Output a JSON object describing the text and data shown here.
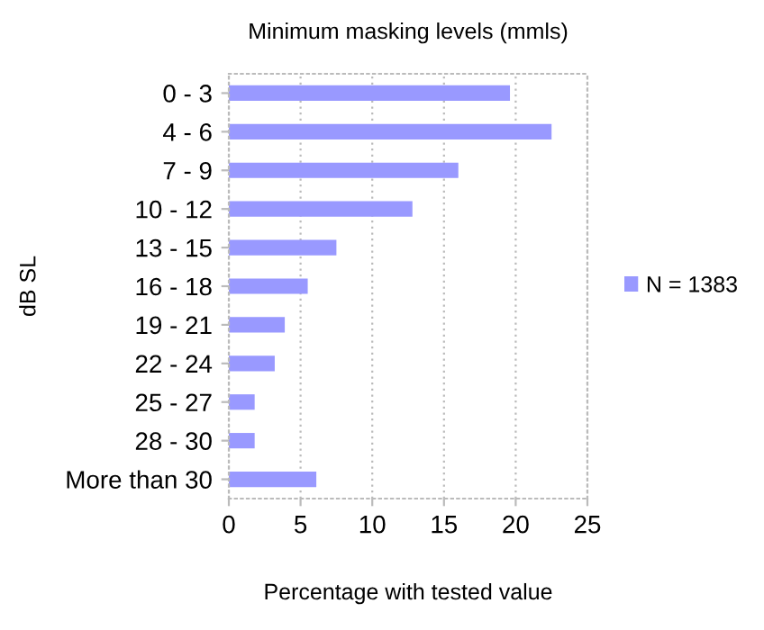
{
  "chart_data": {
    "type": "bar",
    "orientation": "horizontal",
    "title": "Minimum masking levels (mmls)",
    "xlabel": "Percentage with tested value",
    "ylabel": "dB SL",
    "categories": [
      "0 - 3",
      "4 - 6",
      "7 - 9",
      "10 - 12",
      "13 - 15",
      "16 - 18",
      "19 - 21",
      "22 - 24",
      "25 - 27",
      "28 - 30",
      "More than 30"
    ],
    "series": [
      {
        "name": "N = 1383",
        "color": "#9999ff",
        "values": [
          19.6,
          22.5,
          16.0,
          12.8,
          7.5,
          5.5,
          3.9,
          3.2,
          1.8,
          1.8,
          6.1
        ]
      }
    ],
    "xlim": [
      0,
      25
    ],
    "xticks": [
      0,
      5,
      10,
      15,
      20,
      25
    ],
    "grid": "x",
    "legend": "right"
  }
}
